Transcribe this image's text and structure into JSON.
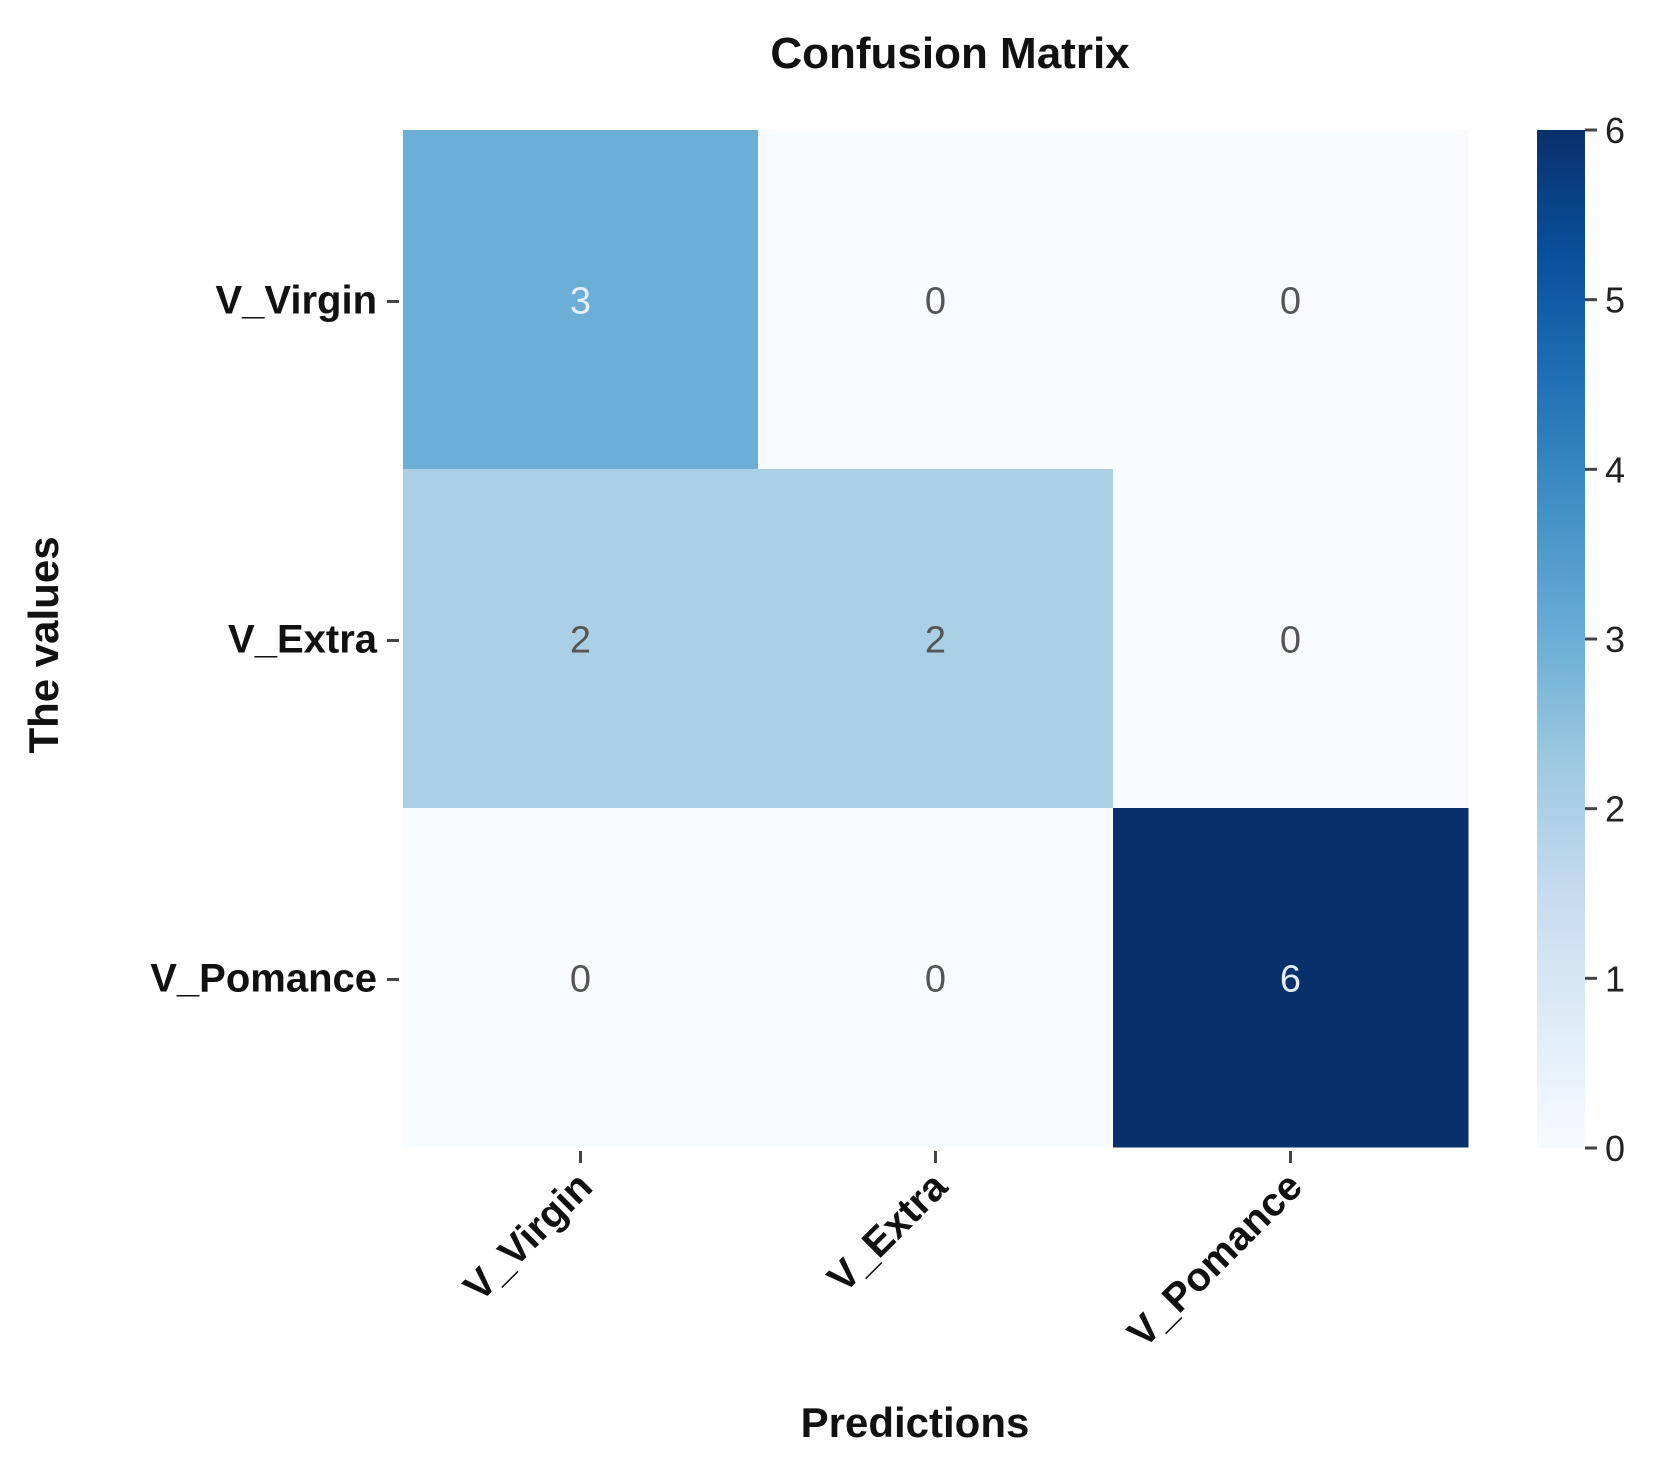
{
  "chart_data": {
    "type": "heatmap",
    "title": "Confusion Matrix",
    "xlabel": "Predictions",
    "ylabel": "The values",
    "x_categories": [
      "V_Virgin",
      "V_Extra",
      "V_Pomance"
    ],
    "y_categories": [
      "V_Virgin",
      "V_Extra",
      "V_Pomance"
    ],
    "values": [
      [
        3,
        0,
        0
      ],
      [
        2,
        2,
        0
      ],
      [
        0,
        0,
        6
      ]
    ],
    "colorbar": {
      "range": [
        0,
        6
      ],
      "ticks": [
        "0",
        "1",
        "2",
        "3",
        "4",
        "5",
        "6"
      ],
      "colormap": "Blues"
    },
    "colors": {
      "low": "#f7fbff",
      "mid": "#6baed6",
      "high": "#08306b",
      "light_text": "#e6eef7",
      "dark_text": "#555555"
    }
  }
}
